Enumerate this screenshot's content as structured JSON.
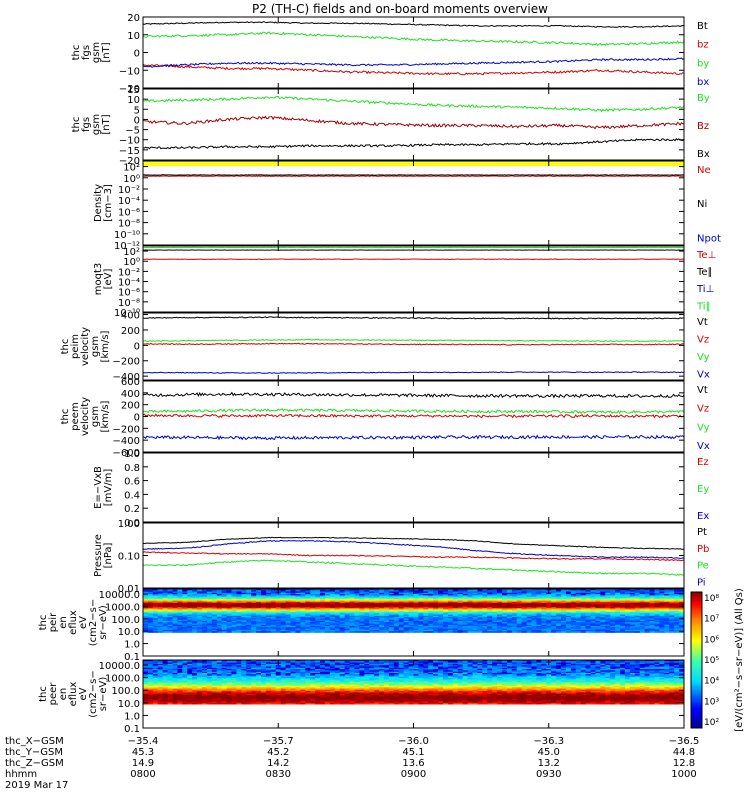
{
  "title": "P2 (TH-C) fields and on-board moments overview",
  "colors": {
    "black": "#000000",
    "red": "#d40000",
    "green": "#20e020",
    "blue": "#0000cc",
    "darkred": "#a00000",
    "yellow": "#ffff00"
  },
  "chart_data": [
    {
      "id": "p1",
      "type": "line",
      "ylabel": [
        "thc",
        "fgs",
        "gsm",
        "[nT]"
      ],
      "ylim": [
        -20,
        20
      ],
      "yticks": [
        {
          "v": 20,
          "t": "20"
        },
        {
          "v": 10,
          "t": "10"
        },
        {
          "v": 0,
          "t": "0"
        },
        {
          "v": -10,
          "t": "−10"
        },
        {
          "v": -20,
          "t": "−20"
        }
      ],
      "series": [
        {
          "name": "Bt",
          "color": "#000000",
          "levels": [
            16,
            16.5,
            17,
            17,
            16.5,
            16.5,
            16,
            15.5,
            15,
            15,
            15,
            14.5,
            14.5,
            15
          ],
          "noise": 0.3
        },
        {
          "name": "bz",
          "color": "#d40000",
          "levels": [
            -7,
            -8,
            -9,
            -9,
            -10,
            -11,
            -11.5,
            -12,
            -12,
            -11.5,
            -11,
            -10,
            -11,
            -12
          ],
          "noise": 0.6
        },
        {
          "name": "by",
          "color": "#20e020",
          "levels": [
            9,
            9.5,
            10,
            11,
            10,
            9,
            8,
            7,
            6.5,
            6,
            5.5,
            4.5,
            5,
            6
          ],
          "noise": 0.6
        },
        {
          "name": "bx",
          "color": "#0000cc",
          "levels": [
            -8,
            -7,
            -6,
            -6,
            -6.5,
            -7,
            -7,
            -6.5,
            -6,
            -5.5,
            -5,
            -4,
            -4,
            -3.5
          ],
          "noise": 0.5
        }
      ]
    },
    {
      "id": "p2",
      "type": "line",
      "ylabel": [
        "thc",
        "fgs",
        "gsm",
        "[nT]"
      ],
      "ylim": [
        -20,
        15
      ],
      "yticks": [
        {
          "v": 15,
          "t": "15"
        },
        {
          "v": 10,
          "t": "10"
        },
        {
          "v": 5,
          "t": "5"
        },
        {
          "v": 0,
          "t": "0"
        },
        {
          "v": -5,
          "t": "−5"
        },
        {
          "v": -10,
          "t": "−10"
        },
        {
          "v": -15,
          "t": "−15"
        },
        {
          "v": -20,
          "t": "−20"
        }
      ],
      "series": [
        {
          "name": "By",
          "color": "#20e020",
          "levels": [
            9,
            9.5,
            10,
            11,
            10,
            9,
            8,
            7,
            6.5,
            6,
            5.5,
            4.5,
            5,
            6
          ],
          "noise": 0.6
        },
        {
          "name": "Bz",
          "color": "#a00000",
          "levels": [
            -1,
            -2,
            0,
            1,
            -0.5,
            -2,
            -2.5,
            -3,
            -3,
            -3.5,
            -3,
            -4,
            -3,
            -2
          ],
          "noise": 0.7
        },
        {
          "name": "Bx",
          "color": "#000000",
          "levels": [
            -14,
            -14,
            -13.5,
            -13.5,
            -13,
            -13,
            -13,
            -12.5,
            -12.5,
            -12,
            -12,
            -11,
            -10,
            -10
          ],
          "noise": 0.5
        }
      ]
    },
    {
      "id": "p3",
      "type": "line",
      "ylabel": [
        "Density",
        "[cm−3]"
      ],
      "ylim": [
        -12,
        3
      ],
      "log": true,
      "yticks": [
        {
          "v": 2,
          "t": "10²"
        },
        {
          "v": 0,
          "t": "10⁰"
        },
        {
          "v": -2,
          "t": "10⁻²"
        },
        {
          "v": -4,
          "t": "10⁻⁴"
        },
        {
          "v": -6,
          "t": "10⁻⁶"
        },
        {
          "v": -8,
          "t": "10⁻⁸"
        },
        {
          "v": -10,
          "t": "10⁻¹⁰"
        },
        {
          "v": -12,
          "t": "10⁻¹²"
        }
      ],
      "series": [
        {
          "name": "Ne",
          "color": "#d40000",
          "levels": [
            0.3,
            0.3,
            0.3,
            0.3,
            0.3,
            0.3,
            0.3,
            0.3,
            0.3,
            0.3,
            0.3,
            0.3,
            0.3,
            0.3
          ],
          "noise": 0.05
        },
        {
          "name": "Ni",
          "color": "#000000",
          "levels": [
            0.5,
            0.5,
            0.5,
            0.5,
            0.5,
            0.5,
            0.5,
            0.5,
            0.5,
            0.5,
            0.5,
            0.5,
            0.5,
            0.5
          ],
          "noise": 0.03
        },
        {
          "name": "Npot",
          "color": "#0000cc",
          "levels": [],
          "noise": 0
        }
      ]
    },
    {
      "id": "p4",
      "type": "line",
      "ylabel": [
        "moqt3",
        "[eV]"
      ],
      "ylim": [
        -10,
        3
      ],
      "log": true,
      "yticks": [
        {
          "v": 2,
          "t": "10²"
        },
        {
          "v": 0,
          "t": "10⁰"
        },
        {
          "v": -2,
          "t": "10⁻²"
        },
        {
          "v": -4,
          "t": "10⁻⁴"
        },
        {
          "v": -6,
          "t": "10⁻⁶"
        },
        {
          "v": -8,
          "t": "10⁻⁸"
        },
        {
          "v": -10,
          "t": "10⁻¹⁰"
        }
      ],
      "series": [
        {
          "name": "Te⊥",
          "color": "#d40000",
          "levels": [
            0.4,
            0.4,
            0.4,
            0.4,
            0.4,
            0.4,
            0.4,
            0.4,
            0.4,
            0.4,
            0.4,
            0.4,
            0.4,
            0.4
          ],
          "noise": 0.05
        },
        {
          "name": "Te∥",
          "color": "#000000",
          "levels": [
            2.2,
            2.2,
            2.2,
            2.2,
            2.2,
            2.2,
            2.2,
            2.2,
            2.2,
            2.2,
            2.2,
            2.2,
            2.2,
            2.2
          ],
          "noise": 0.02
        },
        {
          "name": "Ti⊥",
          "color": "#0000cc",
          "levels": [],
          "noise": 0
        },
        {
          "name": "Ti∥",
          "color": "#20e020",
          "levels": [
            2.7,
            2.7,
            2.7,
            2.7,
            2.7,
            2.7,
            2.7,
            2.7,
            2.7,
            2.7,
            2.7,
            2.7,
            2.7,
            2.7
          ],
          "noise": 0.02
        }
      ]
    },
    {
      "id": "p5",
      "type": "line",
      "ylabel": [
        "thc",
        "peim",
        "velocity",
        "gsm",
        "[km/s]"
      ],
      "ylim": [
        -450,
        420
      ],
      "yticks": [
        {
          "v": 400,
          "t": "400"
        },
        {
          "v": 200,
          "t": "200"
        },
        {
          "v": 0,
          "t": "0"
        },
        {
          "v": -200,
          "t": "−200"
        },
        {
          "v": -400,
          "t": "−400"
        }
      ],
      "series": [
        {
          "name": "Vt",
          "color": "#000000",
          "levels": [
            355,
            360,
            362,
            365,
            360,
            358,
            355,
            352,
            350,
            350,
            348,
            350,
            348,
            352
          ],
          "noise": 6
        },
        {
          "name": "Vz",
          "color": "#d40000",
          "levels": [
            20,
            15,
            18,
            22,
            20,
            18,
            15,
            12,
            10,
            8,
            10,
            12,
            10,
            15
          ],
          "noise": 6
        },
        {
          "name": "Vy",
          "color": "#20e020",
          "levels": [
            55,
            60,
            65,
            70,
            72,
            70,
            68,
            65,
            62,
            60,
            58,
            55,
            55,
            58
          ],
          "noise": 5
        },
        {
          "name": "Vx",
          "color": "#0000cc",
          "levels": [
            -355,
            -355,
            -358,
            -360,
            -358,
            -355,
            -352,
            -350,
            -350,
            -348,
            -348,
            -350,
            -348,
            -350
          ],
          "noise": 5
        }
      ]
    },
    {
      "id": "p6",
      "type": "line",
      "ylabel": [
        "thc",
        "peem",
        "velocity",
        "gsm",
        "[km/s]"
      ],
      "ylim": [
        -600,
        600
      ],
      "yticks": [
        {
          "v": 600,
          "t": "600"
        },
        {
          "v": 400,
          "t": "400"
        },
        {
          "v": 200,
          "t": "200"
        },
        {
          "v": 0,
          "t": "0"
        },
        {
          "v": -200,
          "t": "−200"
        },
        {
          "v": -400,
          "t": "−400"
        },
        {
          "v": -600,
          "t": "−600"
        }
      ],
      "series": [
        {
          "name": "Vt",
          "color": "#000000",
          "levels": [
            360,
            370,
            380,
            375,
            370,
            365,
            360,
            355,
            350,
            350,
            345,
            350,
            345,
            350
          ],
          "noise": 25
        },
        {
          "name": "Vz",
          "color": "#d40000",
          "levels": [
            20,
            15,
            10,
            15,
            12,
            10,
            8,
            10,
            5,
            5,
            8,
            10,
            5,
            10
          ],
          "noise": 22
        },
        {
          "name": "Vy",
          "color": "#20e020",
          "levels": [
            80,
            90,
            100,
            110,
            105,
            100,
            95,
            90,
            85,
            85,
            80,
            75,
            78,
            80
          ],
          "noise": 22
        },
        {
          "name": "Vx",
          "color": "#0000cc",
          "levels": [
            -350,
            -355,
            -360,
            -365,
            -360,
            -358,
            -355,
            -350,
            -350,
            -348,
            -345,
            -348,
            -345,
            -348
          ],
          "noise": 25
        }
      ]
    },
    {
      "id": "p7",
      "type": "line",
      "ylabel": [
        "E=−VxB",
        "[mV/m]"
      ],
      "ylim": [
        0,
        1
      ],
      "yticks": [
        {
          "v": 1,
          "t": "1.0"
        },
        {
          "v": 0.8,
          "t": "0.8"
        },
        {
          "v": 0.6,
          "t": "0.6"
        },
        {
          "v": 0.4,
          "t": "0.4"
        },
        {
          "v": 0.2,
          "t": "0.2"
        },
        {
          "v": 0,
          "t": "0.0"
        }
      ],
      "series": [
        {
          "name": "Ez",
          "color": "#d40000",
          "levels": [],
          "noise": 0
        },
        {
          "name": "Ey",
          "color": "#20e020",
          "levels": [],
          "noise": 0
        },
        {
          "name": "Ex",
          "color": "#0000cc",
          "levels": [],
          "noise": 0
        }
      ]
    },
    {
      "id": "p8",
      "type": "line",
      "ylabel": [
        "Pressure",
        "[nPa]"
      ],
      "ylim": [
        -2,
        0
      ],
      "log": true,
      "yticks": [
        {
          "v": 0,
          "t": "1.00"
        },
        {
          "v": -1,
          "t": "0.10"
        },
        {
          "v": -2,
          "t": "0.01"
        }
      ],
      "series": [
        {
          "name": "Pt",
          "color": "#000000",
          "levels": [
            -0.62,
            -0.6,
            -0.5,
            -0.45,
            -0.45,
            -0.46,
            -0.48,
            -0.5,
            -0.55,
            -0.65,
            -0.7,
            -0.75,
            -0.78,
            -0.8
          ],
          "noise": 0.01
        },
        {
          "name": "Pb",
          "color": "#d40000",
          "levels": [
            -0.9,
            -0.92,
            -0.95,
            -0.95,
            -1.0,
            -1.0,
            -1.02,
            -1.05,
            -1.05,
            -1.08,
            -1.1,
            -1.1,
            -1.12,
            -1.15
          ],
          "noise": 0.015
        },
        {
          "name": "Pe",
          "color": "#20e020",
          "levels": [
            -1.3,
            -1.3,
            -1.2,
            -1.15,
            -1.2,
            -1.25,
            -1.3,
            -1.35,
            -1.4,
            -1.45,
            -1.5,
            -1.55,
            -1.55,
            -1.6
          ],
          "noise": 0.02
        },
        {
          "name": "Pi",
          "color": "#0000cc",
          "levels": [
            -0.8,
            -0.78,
            -0.65,
            -0.55,
            -0.55,
            -0.58,
            -0.65,
            -0.72,
            -0.85,
            -0.95,
            -1.0,
            -1.05,
            -1.05,
            -1.08
          ],
          "noise": 0.015
        }
      ]
    },
    {
      "id": "p9",
      "type": "heatmap",
      "ylabel": [
        "thc",
        "peir",
        "en",
        "eflux",
        "eV",
        "(cm2−s−",
        "sr−eV)"
      ],
      "ylim": [
        -1,
        4.4
      ],
      "log": true,
      "yticks": [
        {
          "v": 4,
          "t": "10000.0"
        },
        {
          "v": 3,
          "t": "1000.0"
        },
        {
          "v": 2,
          "t": "100.0"
        },
        {
          "v": 1,
          "t": "10.0"
        },
        {
          "v": 0,
          "t": "1.0"
        },
        {
          "v": -1,
          "t": "0.1"
        }
      ],
      "data_ylim": [
        0.9,
        4.4
      ],
      "peak": 3.1,
      "width": 0.5
    },
    {
      "id": "p10",
      "type": "heatmap",
      "ylabel": [
        "thc",
        "peer",
        "en",
        "eflux",
        "eV",
        "(cm2−s−",
        "sr−eV)"
      ],
      "ylim": [
        -1,
        4.4
      ],
      "log": true,
      "yticks": [
        {
          "v": 4,
          "t": "10000.0"
        },
        {
          "v": 3,
          "t": "1000.0"
        },
        {
          "v": 2,
          "t": "100.0"
        },
        {
          "v": 1,
          "t": "10.0"
        },
        {
          "v": 0,
          "t": "1.0"
        },
        {
          "v": -1,
          "t": "0.1"
        }
      ],
      "data_ylim": [
        0.9,
        4.4
      ],
      "peak": 1.4,
      "width": 1.1
    }
  ],
  "colorbar": {
    "label": "[eV/(cm²−s−sr−eV)] (All Qs)",
    "ticks": [
      "10⁸",
      "10⁷",
      "10⁶",
      "10⁵",
      "10⁴",
      "10³",
      "10²"
    ]
  },
  "x_axis": {
    "rows": [
      {
        "label": "thc_X−GSM",
        "values": [
          "−35.4",
          "−35.7",
          "−36.0",
          "−36.3",
          "−36.5"
        ]
      },
      {
        "label": "thc_Y−GSM",
        "values": [
          "45.3",
          "45.2",
          "45.1",
          "45.0",
          "44.8"
        ]
      },
      {
        "label": "thc_Z−GSM",
        "values": [
          "14.9",
          "14.2",
          "13.6",
          "13.2",
          "12.8"
        ]
      },
      {
        "label": "hhmm",
        "values": [
          "0800",
          "0830",
          "0900",
          "0930",
          "1000"
        ]
      }
    ],
    "date": "2019 Mar 17"
  }
}
